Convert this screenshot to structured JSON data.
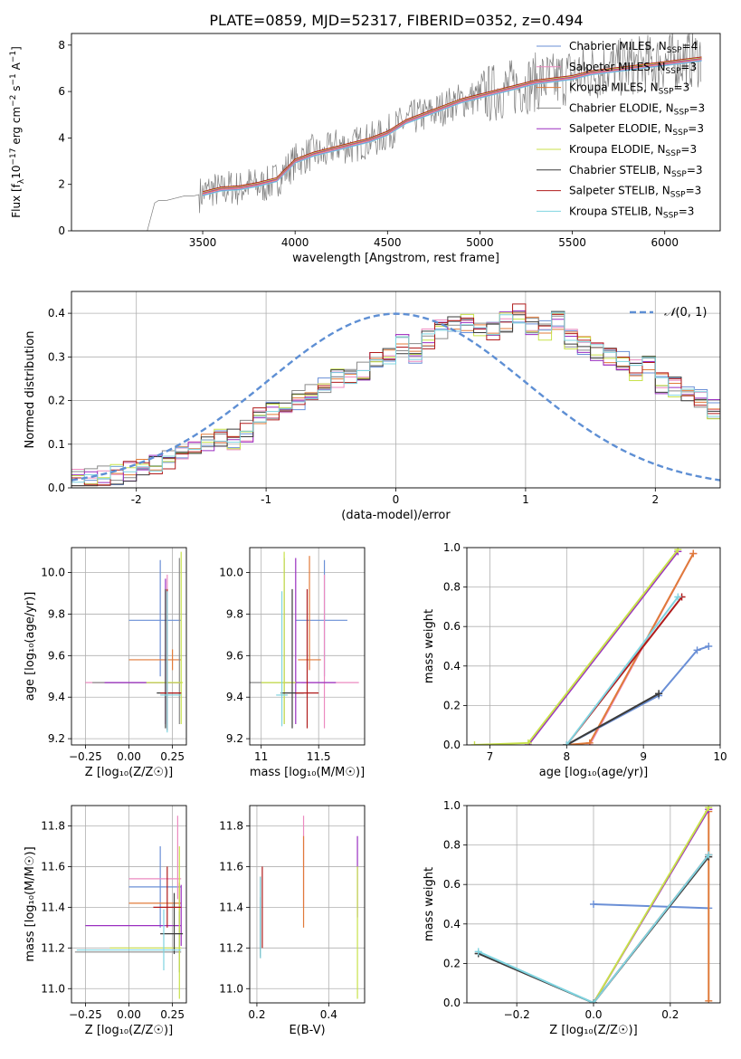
{
  "title": "PLATE=0859, MJD=52317, FIBERID=0352, z=0.494",
  "series_styles": [
    {
      "name": "Chabrier MILES, N_SSP=4",
      "label_main": "Chabrier MILES, N",
      "label_sub": "SSP",
      "label_tail": "=4",
      "color": "#6a8fd6"
    },
    {
      "name": "Salpeter MILES, N_SSP=3",
      "label_main": "Salpeter MILES, N",
      "label_sub": "SSP",
      "label_tail": "=3",
      "color": "#ec8ac0"
    },
    {
      "name": "Kroupa MILES, N_SSP=3",
      "label_main": "Kroupa MILES, N",
      "label_sub": "SSP",
      "label_tail": "=3",
      "color": "#e07b3a"
    },
    {
      "name": "Chabrier ELODIE, N_SSP=3",
      "label_main": "Chabrier ELODIE, N",
      "label_sub": "SSP",
      "label_tail": "=3",
      "color": "#8a8a8a"
    },
    {
      "name": "Salpeter ELODIE, N_SSP=3",
      "label_main": "Salpeter ELODIE, N",
      "label_sub": "SSP",
      "label_tail": "=3",
      "color": "#9a2fc0"
    },
    {
      "name": "Kroupa ELODIE, N_SSP=3",
      "label_main": "Kroupa ELODIE, N",
      "label_sub": "SSP",
      "label_tail": "=3",
      "color": "#c8e24a"
    },
    {
      "name": "Chabrier STELIB, N_SSP=3",
      "label_main": "Chabrier STELIB, N",
      "label_sub": "SSP",
      "label_tail": "=3",
      "color": "#3b3b3b"
    },
    {
      "name": "Salpeter STELIB, N_SSP=3",
      "label_main": "Salpeter STELIB, N",
      "label_sub": "SSP",
      "label_tail": "=3",
      "color": "#b01b1b"
    },
    {
      "name": "Kroupa STELIB, N_SSP=3",
      "label_main": "Kroupa STELIB, N",
      "label_sub": "SSP",
      "label_tail": "=3",
      "color": "#7fd4e0"
    }
  ],
  "chart_data": [
    {
      "id": "spectrum",
      "type": "line",
      "xlabel": "wavelength [Angstrom, rest frame]",
      "ylabel_main": "Flux [f",
      "ylabel_sub": "λ",
      "ylabel_mid": "10",
      "ylabel_sup1": "−17",
      "ylabel_rest": " erg cm",
      "ylabel_sup2": "−2",
      "ylabel_s": " s",
      "ylabel_sup3": "−1",
      "ylabel_end": " A",
      "ylabel_sup4": "−1",
      "ylabel_close": "]",
      "xlim": [
        2790,
        6300
      ],
      "ylim": [
        0,
        8.5
      ],
      "xticks": [
        3500,
        4000,
        4500,
        5000,
        5500,
        6000
      ],
      "yticks": [
        0,
        2,
        4,
        6,
        8
      ],
      "grid": false,
      "legend": "top-right",
      "data_x": [
        3200,
        3240,
        3260,
        3300,
        3350,
        3400,
        3450,
        3500,
        3550,
        3600,
        3650,
        3700,
        3750,
        3800,
        3850,
        3900,
        3950,
        4000,
        4050,
        4100,
        4150,
        4200,
        4250,
        4300,
        4350,
        4400,
        4450,
        4500,
        4550,
        4600,
        4650,
        4700,
        4750,
        4800,
        4850,
        4900,
        4950,
        5000,
        5050,
        5100,
        5150,
        5200,
        5250,
        5300,
        5350,
        5400,
        5450,
        5500,
        5550,
        5600,
        5650,
        5700,
        5750,
        5800,
        5850,
        5900,
        5950,
        6000,
        6050,
        6100,
        6150,
        6200
      ],
      "data_y": [
        0.0,
        1.2,
        1.3,
        1.3,
        1.4,
        1.5,
        1.5,
        1.6,
        1.8,
        1.7,
        1.9,
        1.8,
        2.0,
        1.9,
        2.0,
        2.2,
        2.6,
        3.0,
        3.2,
        3.4,
        3.2,
        3.6,
        3.7,
        3.6,
        3.8,
        3.9,
        4.0,
        4.2,
        4.5,
        4.7,
        4.9,
        5.0,
        5.1,
        5.3,
        5.5,
        5.6,
        5.7,
        5.8,
        5.9,
        6.0,
        6.1,
        6.2,
        6.3,
        6.4,
        6.5,
        6.4,
        6.6,
        6.7,
        6.8,
        6.8,
        6.9,
        7.0,
        7.0,
        7.1,
        7.1,
        7.2,
        7.2,
        7.3,
        7.3,
        7.4,
        7.4,
        7.5
      ],
      "model_x": [
        3500,
        3600,
        3700,
        3800,
        3900,
        3950,
        4000,
        4100,
        4200,
        4300,
        4400,
        4500,
        4600,
        4700,
        4800,
        4900,
        5000,
        5100,
        5200,
        5300,
        5400,
        5500,
        5600,
        5700,
        5800,
        5900,
        6000,
        6100,
        6200
      ],
      "model_y": [
        1.6,
        1.8,
        1.85,
        2.0,
        2.2,
        2.6,
        3.0,
        3.3,
        3.5,
        3.7,
        3.9,
        4.2,
        4.7,
        5.0,
        5.3,
        5.6,
        5.8,
        6.0,
        6.2,
        6.4,
        6.5,
        6.6,
        6.8,
        6.9,
        7.0,
        7.1,
        7.2,
        7.3,
        7.4
      ]
    },
    {
      "id": "residuals",
      "type": "histogram",
      "xlabel": "(data-model)/error",
      "ylabel": "Normed distribution",
      "xlim": [
        -2.5,
        2.5
      ],
      "ylim": [
        0,
        0.45
      ],
      "xticks": [
        -2,
        -1,
        0,
        1,
        2
      ],
      "yticks": [
        0.0,
        0.1,
        0.2,
        0.3,
        0.4
      ],
      "grid": true,
      "legend": "top-right",
      "gaussian_label_main": "𝒩",
      "gaussian_label_rest": "(0, 1)",
      "bin_width": 0.1,
      "bin_start": -2.5,
      "base_values": [
        0.02,
        0.02,
        0.03,
        0.03,
        0.04,
        0.05,
        0.05,
        0.06,
        0.07,
        0.09,
        0.11,
        0.12,
        0.11,
        0.13,
        0.16,
        0.18,
        0.18,
        0.2,
        0.22,
        0.24,
        0.25,
        0.26,
        0.27,
        0.29,
        0.3,
        0.33,
        0.31,
        0.34,
        0.36,
        0.37,
        0.38,
        0.37,
        0.36,
        0.38,
        0.4,
        0.37,
        0.36,
        0.38,
        0.34,
        0.33,
        0.31,
        0.3,
        0.29,
        0.27,
        0.28,
        0.24,
        0.23,
        0.22,
        0.2,
        0.18,
        0.19,
        0.17,
        0.16,
        0.14,
        0.12,
        0.1,
        0.09,
        0.08,
        0.07,
        0.06
      ]
    },
    {
      "id": "age-vs-z",
      "type": "errorbar",
      "xlabel": "Z [log₁₀(Z/Z☉)]",
      "ylabel": "age  [log₁₀(age/yr)]",
      "xlim": [
        -0.33,
        0.33
      ],
      "ylim": [
        9.17,
        10.12
      ],
      "xticks": [
        -0.25,
        0.0,
        0.25
      ],
      "xtick_labels": [
        "−0.25",
        "0.00",
        "0.25"
      ],
      "yticks": [
        9.2,
        9.4,
        9.6,
        9.8,
        10.0
      ],
      "grid": true,
      "points": [
        {
          "x": 0.18,
          "y": 9.77,
          "xerr": [
            0.18,
            0.12
          ],
          "yerr": [
            0.27,
            0.29
          ]
        },
        {
          "x": 0.22,
          "y": 9.47,
          "xerr": [
            0.47,
            0.08
          ],
          "yerr": [
            0.22,
            0.52
          ]
        },
        {
          "x": 0.25,
          "y": 9.58,
          "xerr": [
            0.25,
            0.05
          ],
          "yerr": [
            0.05,
            0.05
          ]
        },
        {
          "x": 0.29,
          "y": 9.47,
          "xerr": [
            0.5,
            0.01
          ],
          "yerr": [
            0.2,
            0.6
          ]
        },
        {
          "x": 0.21,
          "y": 9.47,
          "xerr": [
            0.35,
            0.09
          ],
          "yerr": [
            0.2,
            0.5
          ]
        },
        {
          "x": 0.3,
          "y": 9.47,
          "xerr": [
            0.2,
            0.01
          ],
          "yerr": [
            0.2,
            0.63
          ]
        },
        {
          "x": 0.21,
          "y": 9.42,
          "xerr": [
            0.05,
            0.09
          ],
          "yerr": [
            0.17,
            0.5
          ]
        },
        {
          "x": 0.22,
          "y": 9.42,
          "xerr": [
            0.04,
            0.08
          ],
          "yerr": [
            0.18,
            0.5
          ]
        },
        {
          "x": 0.22,
          "y": 9.41,
          "xerr": [
            0.04,
            0.08
          ],
          "yerr": [
            0.18,
            0.5
          ]
        }
      ]
    },
    {
      "id": "age-vs-mass",
      "type": "errorbar",
      "xlabel": "mass [log₁₀(M/M☉)]",
      "ylabel": "",
      "xlim": [
        10.9,
        11.9
      ],
      "ylim": [
        9.17,
        10.12
      ],
      "xticks": [
        11.0,
        11.5
      ],
      "yticks": [
        9.2,
        9.4,
        9.6,
        9.8,
        10.0
      ],
      "grid": true,
      "points": [
        {
          "x": 11.55,
          "y": 9.77,
          "xerr": [
            0.25,
            0.2
          ],
          "yerr": [
            0.27,
            0.29
          ]
        },
        {
          "x": 11.55,
          "y": 9.47,
          "xerr": [
            0.2,
            0.3
          ],
          "yerr": [
            0.22,
            0.52
          ]
        },
        {
          "x": 11.42,
          "y": 9.58,
          "xerr": [
            0.1,
            0.1
          ],
          "yerr": [
            0.05,
            0.5
          ]
        },
        {
          "x": 11.2,
          "y": 9.47,
          "xerr": [
            0.3,
            0.1
          ],
          "yerr": [
            0.2,
            0.6
          ]
        },
        {
          "x": 11.3,
          "y": 9.47,
          "xerr": [
            0.1,
            0.35
          ],
          "yerr": [
            0.2,
            0.6
          ]
        },
        {
          "x": 11.2,
          "y": 9.47,
          "xerr": [
            0.2,
            0.1
          ],
          "yerr": [
            0.2,
            0.63
          ]
        },
        {
          "x": 11.27,
          "y": 9.42,
          "xerr": [
            0.1,
            0.1
          ],
          "yerr": [
            0.17,
            0.5
          ]
        },
        {
          "x": 11.4,
          "y": 9.42,
          "xerr": [
            0.1,
            0.1
          ],
          "yerr": [
            0.17,
            0.5
          ]
        },
        {
          "x": 11.18,
          "y": 9.41,
          "xerr": [
            0.05,
            0.05
          ],
          "yerr": [
            0.15,
            0.5
          ]
        }
      ]
    },
    {
      "id": "massweight-vs-age",
      "type": "line",
      "xlabel": "age  [log₁₀(age/yr)]",
      "ylabel": "mass weight",
      "xlim": [
        6.7,
        10
      ],
      "ylim": [
        0,
        1
      ],
      "xticks": [
        7,
        8,
        9,
        10
      ],
      "yticks": [
        0.0,
        0.2,
        0.4,
        0.6,
        0.8,
        1.0
      ],
      "grid": true,
      "series": [
        {
          "x": [
            8.0,
            9.2,
            9.7,
            9.85
          ],
          "y": [
            0.0,
            0.25,
            0.48,
            0.5
          ]
        },
        {
          "x": [
            8.3,
            9.65,
            9.65
          ],
          "y": [
            0.0,
            0.97,
            0.97
          ]
        },
        {
          "x": [
            8.0,
            8.3,
            9.65
          ],
          "y": [
            0.0,
            0.01,
            0.97
          ]
        },
        {
          "x": [
            8.0,
            9.2
          ],
          "y": [
            0.0,
            0.26
          ]
        },
        {
          "x": [
            7.5,
            9.45
          ],
          "y": [
            0.0,
            0.98
          ]
        },
        {
          "x": [
            6.8,
            7.5,
            9.45
          ],
          "y": [
            0.0,
            0.01,
            0.99
          ]
        },
        {
          "x": [
            8.0,
            9.2
          ],
          "y": [
            0.0,
            0.26
          ]
        },
        {
          "x": [
            8.0,
            9.5
          ],
          "y": [
            0.0,
            0.75
          ]
        },
        {
          "x": [
            8.0,
            9.45
          ],
          "y": [
            0.0,
            0.75
          ]
        }
      ]
    },
    {
      "id": "mass-vs-z",
      "type": "errorbar",
      "xlabel": "Z [log₁₀(Z/Z☉)]",
      "ylabel": "mass [log₁₀(M/M☉)]",
      "xlim": [
        -0.33,
        0.33
      ],
      "ylim": [
        10.93,
        11.9
      ],
      "xticks": [
        -0.25,
        0.0,
        0.25
      ],
      "xtick_labels": [
        "−0.25",
        "0.00",
        "0.25"
      ],
      "yticks": [
        11.0,
        11.2,
        11.4,
        11.6,
        11.8
      ],
      "grid": true,
      "points": [
        {
          "x": 0.18,
          "y": 11.5,
          "xerr": [
            0.18,
            0.12
          ],
          "yerr": [
            0.2,
            0.2
          ]
        },
        {
          "x": 0.28,
          "y": 11.54,
          "xerr": [
            0.28,
            0.02
          ],
          "yerr": [
            0.1,
            0.31
          ]
        },
        {
          "x": 0.29,
          "y": 11.42,
          "xerr": [
            0.29,
            0.01
          ],
          "yerr": [
            0.1,
            0.1
          ]
        },
        {
          "x": 0.29,
          "y": 11.18,
          "xerr": [
            0.6,
            0.01
          ],
          "yerr": [
            0.1,
            0.2
          ]
        },
        {
          "x": 0.3,
          "y": 11.31,
          "xerr": [
            0.55,
            0.0
          ],
          "yerr": [
            0.1,
            0.2
          ]
        },
        {
          "x": 0.29,
          "y": 11.2,
          "xerr": [
            0.4,
            0.01
          ],
          "yerr": [
            0.25,
            0.5
          ]
        },
        {
          "x": 0.26,
          "y": 11.27,
          "xerr": [
            0.08,
            0.05
          ],
          "yerr": [
            0.1,
            0.2
          ]
        },
        {
          "x": 0.22,
          "y": 11.4,
          "xerr": [
            0.08,
            0.08
          ],
          "yerr": [
            0.1,
            0.2
          ]
        },
        {
          "x": 0.2,
          "y": 11.19,
          "xerr": [
            0.5,
            0.1
          ],
          "yerr": [
            0.1,
            0.2
          ]
        }
      ]
    },
    {
      "id": "mass-vs-ebv",
      "type": "errorbar",
      "xlabel": "E(B-V)",
      "ylabel": "",
      "xlim": [
        0.18,
        0.5
      ],
      "ylim": [
        10.93,
        11.9
      ],
      "xticks": [
        0.2,
        0.4
      ],
      "yticks": [
        11.0,
        11.2,
        11.4,
        11.6,
        11.8
      ],
      "grid": true,
      "points": [
        {
          "x": 0.21,
          "y": 11.35,
          "xerr": [
            0.0,
            0.0
          ],
          "yerr": [
            0.15,
            0.1
          ]
        },
        {
          "x": 0.33,
          "y": 11.55,
          "xerr": [
            0.0,
            0.0
          ],
          "yerr": [
            0.15,
            0.3
          ]
        },
        {
          "x": 0.33,
          "y": 11.5,
          "xerr": [
            0.0,
            0.0
          ],
          "yerr": [
            0.2,
            0.25
          ]
        },
        {
          "x": 0.21,
          "y": 11.3,
          "xerr": [
            0.0,
            0.0
          ],
          "yerr": [
            0.14,
            0.1
          ]
        },
        {
          "x": 0.48,
          "y": 11.55,
          "xerr": [
            0.0,
            0.0
          ],
          "yerr": [
            0.2,
            0.2
          ]
        },
        {
          "x": 0.48,
          "y": 11.3,
          "xerr": [
            0.0,
            0.0
          ],
          "yerr": [
            0.35,
            0.3
          ]
        },
        {
          "x": 0.21,
          "y": 11.35,
          "xerr": [
            0.0,
            0.0
          ],
          "yerr": [
            0.2,
            0.2
          ]
        },
        {
          "x": 0.215,
          "y": 11.4,
          "xerr": [
            0.0,
            0.0
          ],
          "yerr": [
            0.2,
            0.2
          ]
        },
        {
          "x": 0.21,
          "y": 11.35,
          "xerr": [
            0.0,
            0.0
          ],
          "yerr": [
            0.2,
            0.2
          ]
        }
      ]
    },
    {
      "id": "massweight-vs-z",
      "type": "line",
      "xlabel": "Z [log₁₀(Z/Z☉)]",
      "ylabel": "mass weight",
      "xlim": [
        -0.33,
        0.33
      ],
      "ylim": [
        0,
        1
      ],
      "xticks": [
        -0.2,
        0.0,
        0.2
      ],
      "xtick_labels": [
        "−0.2",
        "0.0",
        "0.2"
      ],
      "yticks": [
        0.0,
        0.2,
        0.4,
        0.6,
        0.8,
        1.0
      ],
      "grid": true,
      "series": [
        {
          "x": [
            0.0,
            0.3
          ],
          "y": [
            0.5,
            0.48
          ]
        },
        {
          "x": [
            0.0,
            0.3
          ],
          "y": [
            0.0,
            0.98
          ]
        },
        {
          "x": [
            0.3,
            0.3
          ],
          "y": [
            0.01,
            0.97
          ]
        },
        {
          "x": [
            -0.3,
            0.0
          ],
          "y": [
            0.25,
            0.0
          ]
        },
        {
          "x": [
            0.0,
            0.3
          ],
          "y": [
            0.0,
            0.98
          ]
        },
        {
          "x": [
            0.0,
            0.3
          ],
          "y": [
            0.0,
            0.99
          ]
        },
        {
          "x": [
            -0.3,
            0.0,
            0.3
          ],
          "y": [
            0.25,
            0.0,
            0.74
          ]
        },
        {
          "x": [
            0.0,
            0.3
          ],
          "y": [
            0.0,
            0.75
          ]
        },
        {
          "x": [
            -0.3,
            0.0,
            0.3
          ],
          "y": [
            0.26,
            0.0,
            0.75
          ]
        }
      ]
    }
  ]
}
